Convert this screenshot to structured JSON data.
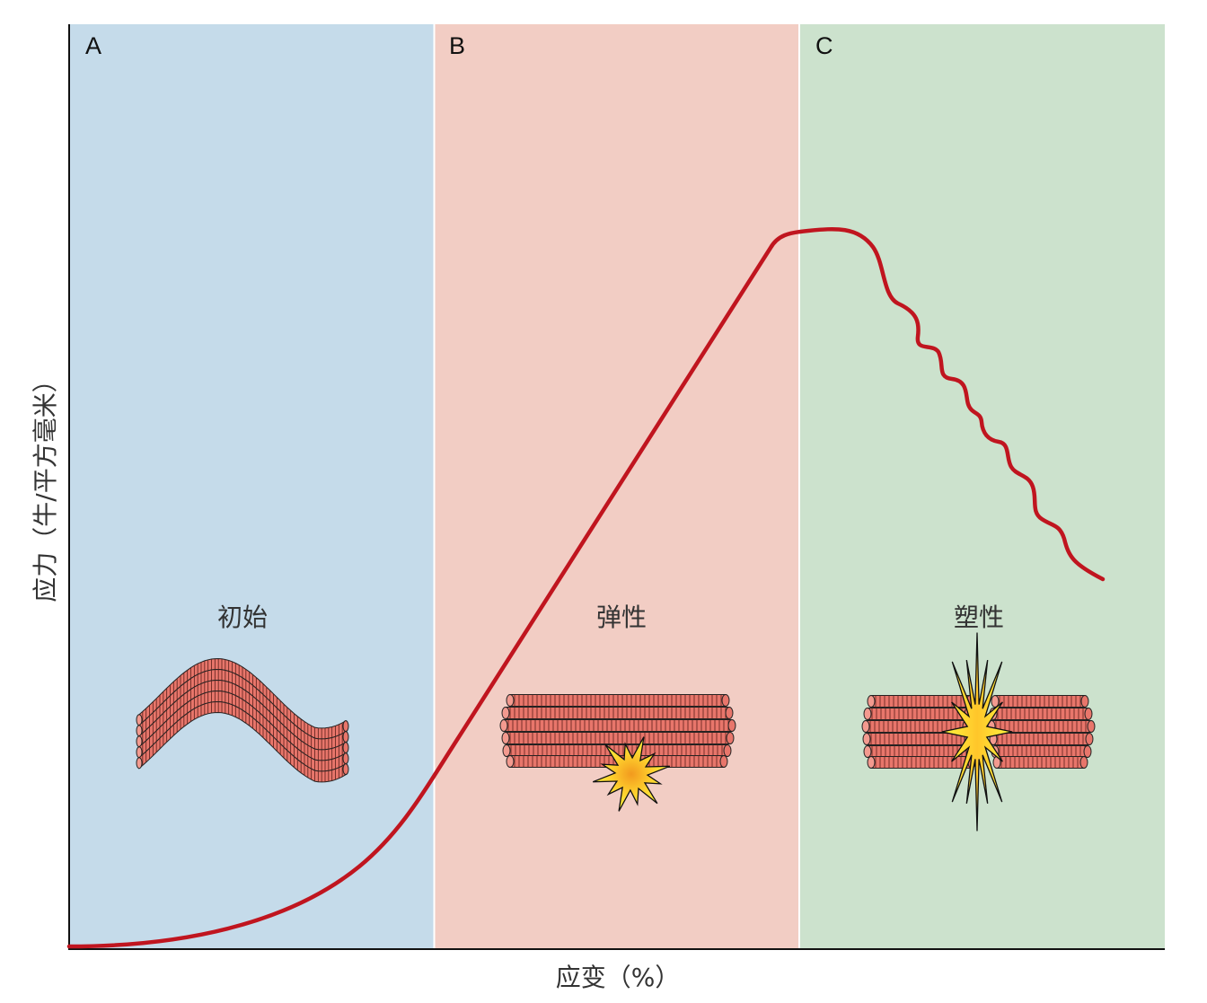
{
  "axes": {
    "x_label": "应变（%）",
    "y_label": "应力（牛/平方毫米）"
  },
  "colors": {
    "zone_a": "#c5dbea",
    "zone_b": "#f2cdc4",
    "zone_c": "#cce2cd",
    "curve": "#c0151f",
    "fiber": "#e8766b",
    "burst_outer": "#fff23a",
    "burst_inner": "#f5a623"
  },
  "zones": [
    {
      "letter": "A",
      "label": "初始",
      "fiber_icon": "wavy-fibers-icon"
    },
    {
      "letter": "B",
      "label": "弹性",
      "fiber_icon": "straight-fibers-partial-tear-icon"
    },
    {
      "letter": "C",
      "label": "塑性",
      "fiber_icon": "straight-fibers-rupture-icon"
    }
  ]
}
